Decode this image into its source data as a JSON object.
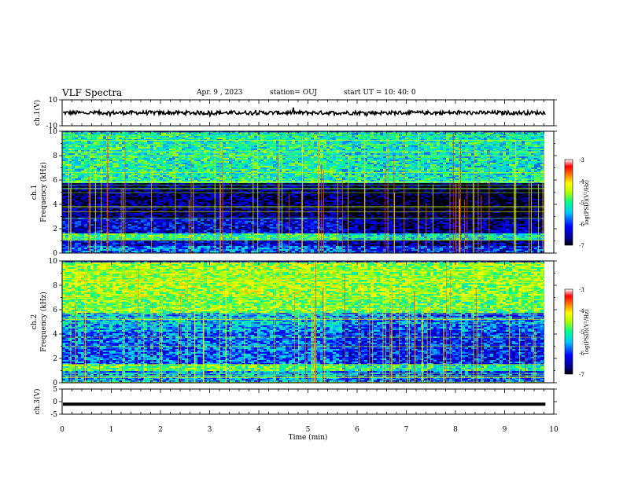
{
  "header": {
    "title": "VLF Spectra",
    "date": "Apr. 9  , 2023",
    "station": "station= OUJ",
    "start": "start  UT  =   10: 40: 0"
  },
  "chart_data": [
    {
      "type": "line",
      "panel": "ch1-waveform",
      "ylabel": "ch.1(V)",
      "ylim": [
        -10,
        10
      ],
      "yticks": [
        "10",
        "-10"
      ],
      "x": [
        0,
        9.83
      ],
      "series": [
        {
          "values_description_level": 0,
          "noise_amplitude": 1.5
        }
      ],
      "color": "#000000"
    },
    {
      "type": "heatmap",
      "panel": "ch1-spectrogram",
      "ylabel": "ch.1\nFrequency  (kHz)",
      "ylim": [
        0,
        10
      ],
      "yticks": [
        "0",
        "2",
        "4",
        "6",
        "8",
        "10"
      ],
      "xlim": [
        0,
        9.83
      ],
      "colorbar": {
        "label": "log(PSD)(V²/Hz)",
        "range": [
          -7,
          -3
        ],
        "ticks": [
          "-3",
          "-4",
          "-5",
          "-6",
          "-7"
        ]
      },
      "bands": [
        {
          "from": 0,
          "to": 0.6,
          "level": -5.8
        },
        {
          "from": 0.6,
          "to": 1.2,
          "level": -6.3
        },
        {
          "from": 1.2,
          "to": 1.7,
          "level": -5.0
        },
        {
          "from": 1.7,
          "to": 3.0,
          "level": -6.3
        },
        {
          "from": 3.0,
          "to": 5.8,
          "level": -6.7
        },
        {
          "from": 5.8,
          "to": 10,
          "level": -5.1
        }
      ],
      "change_at_minute": 5.65
    },
    {
      "type": "heatmap",
      "panel": "ch2-spectrogram",
      "ylabel": "ch.2\nFrequency  (kHz)",
      "ylim": [
        0,
        10
      ],
      "yticks": [
        "0",
        "2",
        "4",
        "6",
        "8",
        "10"
      ],
      "xlim": [
        0,
        9.83
      ],
      "colorbar": {
        "label": "log(PSD)(V²/Hz)",
        "range": [
          -7,
          -3
        ],
        "ticks": [
          "-3",
          "-4",
          "-5",
          "-6",
          "-7"
        ]
      },
      "bands": [
        {
          "from": 0,
          "to": 1.0,
          "level": -5.6
        },
        {
          "from": 1.0,
          "to": 1.5,
          "level": -4.8
        },
        {
          "from": 1.5,
          "to": 4.2,
          "level": -5.8
        },
        {
          "from": 4.2,
          "to": 5.8,
          "level": -5.5
        },
        {
          "from": 5.8,
          "to": 7.0,
          "level": -4.7
        },
        {
          "from": 7.0,
          "to": 10,
          "level": -4.5
        }
      ],
      "change_at_minute": 5.65
    },
    {
      "type": "line",
      "panel": "ch3-waveform",
      "ylabel": "ch.3(V)",
      "ylim": [
        -5,
        5
      ],
      "yticks": [
        "5",
        "0",
        "-5"
      ],
      "x": [
        0,
        9.83
      ],
      "series": [
        {
          "constant_level": -1.0
        }
      ],
      "color": "#000000"
    }
  ],
  "xaxis": {
    "label": "Time  (min)",
    "range": [
      0,
      10
    ],
    "ticks": [
      "0",
      "1",
      "2",
      "3",
      "4",
      "5",
      "6",
      "7",
      "8",
      "9",
      "10"
    ]
  }
}
